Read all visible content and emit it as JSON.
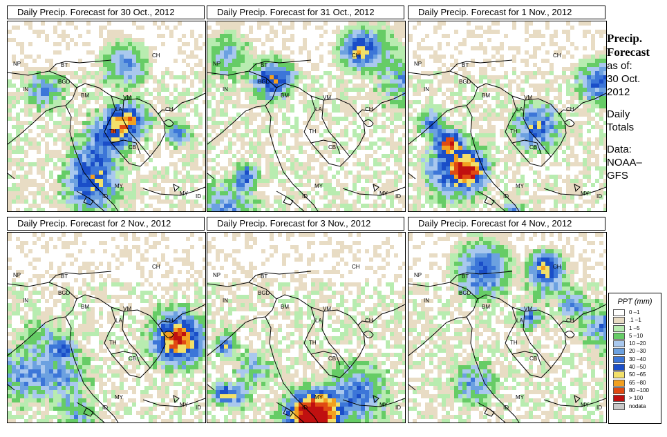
{
  "panels": [
    {
      "title": "Daily Precip. Forecast for  30 Oct., 2012",
      "seed": 11
    },
    {
      "title": "Daily Precip. Forecast for  31 Oct., 2012",
      "seed": 23
    },
    {
      "title": "Daily Precip. Forecast for  1 Nov., 2012",
      "seed": 37
    },
    {
      "title": "Daily Precip. Forecast for  2 Nov., 2012",
      "seed": 41
    },
    {
      "title": "Daily Precip. Forecast for  3 Nov., 2012",
      "seed": 53
    },
    {
      "title": "Daily Precip. Forecast for  4 Nov., 2012",
      "seed": 67
    }
  ],
  "country_labels": [
    "NP",
    "BT",
    "BGD",
    "IN",
    "CH",
    "BM",
    "VM",
    "LA",
    "CH",
    "TH",
    "CB",
    "MY",
    "ID",
    "MY",
    "ID"
  ],
  "sidebar": {
    "title_line1": "Precip.",
    "title_line2": "Forecast",
    "asof": "as of:",
    "date_line1": "30 Oct.",
    "date_line2": "2012",
    "daily1": "Daily",
    "daily2": "Totals",
    "data1": "Data:",
    "data2": "NOAA–",
    "data3": "GFS"
  },
  "legend": {
    "title": "PPT (mm)",
    "items": [
      {
        "label": "0 –1",
        "color": "#ffffff"
      },
      {
        "label": ".1 –1",
        "color": "#e8dcc4"
      },
      {
        "label": "1 –5",
        "color": "#b8ecb0"
      },
      {
        "label": "5 –10",
        "color": "#66cc66"
      },
      {
        "label": "10 –20",
        "color": "#a9c8ee"
      },
      {
        "label": "20 –30",
        "color": "#6ca1e0"
      },
      {
        "label": "30 –40",
        "color": "#3c76d8"
      },
      {
        "label": "40 –50",
        "color": "#1a4ec8"
      },
      {
        "label": "50 –65",
        "color": "#f2e06a"
      },
      {
        "label": "65 –80",
        "color": "#f2a020"
      },
      {
        "label": "80 –100",
        "color": "#e04a12"
      },
      {
        "label": "> 100",
        "color": "#c01010"
      },
      {
        "label": "nodata",
        "color": "#c8c8c8"
      }
    ]
  }
}
